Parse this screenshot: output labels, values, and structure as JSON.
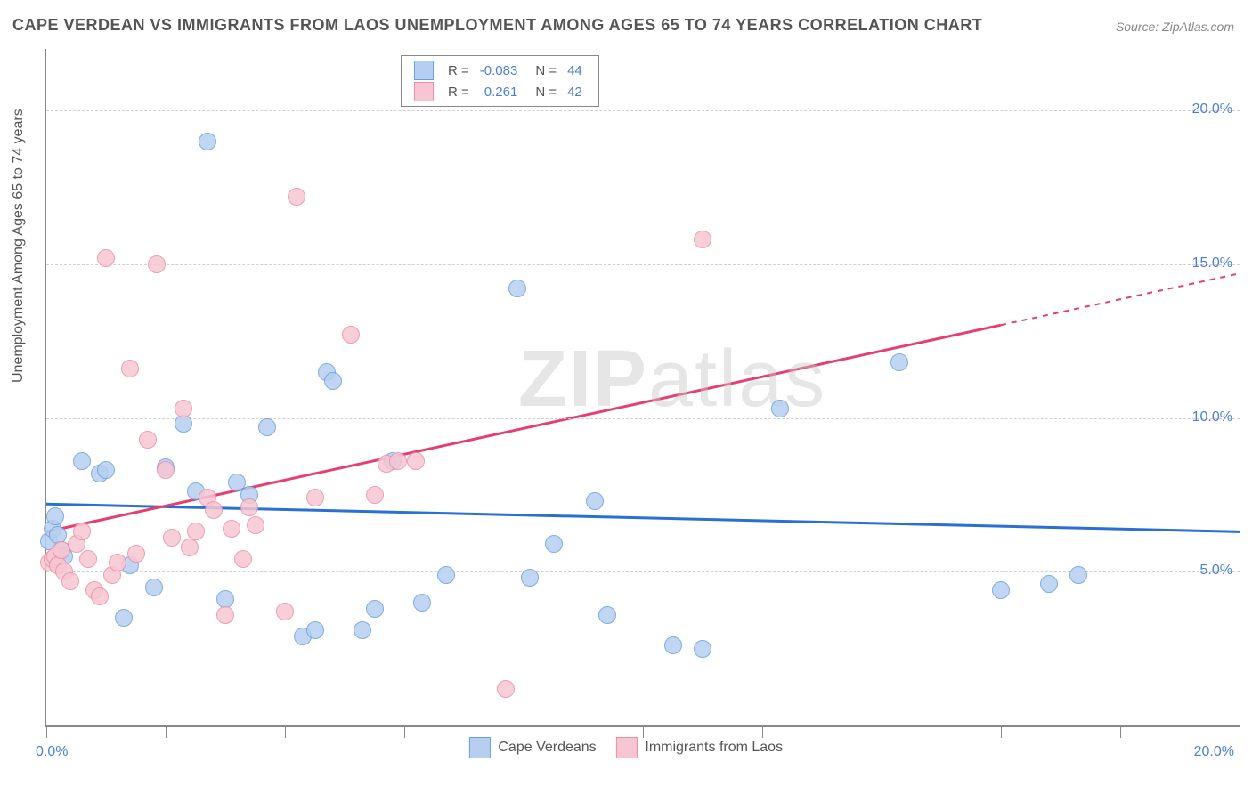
{
  "title": "CAPE VERDEAN VS IMMIGRANTS FROM LAOS UNEMPLOYMENT AMONG AGES 65 TO 74 YEARS CORRELATION CHART",
  "source": "Source: ZipAtlas.com",
  "ylabel": "Unemployment Among Ages 65 to 74 years",
  "watermark_bold": "ZIP",
  "watermark_thin": "atlas",
  "chart": {
    "type": "scatter",
    "xlim": [
      0,
      20
    ],
    "ylim": [
      0,
      22
    ],
    "x_axis_label_min": "0.0%",
    "x_axis_label_max": "20.0%",
    "y_ticks": [
      5,
      10,
      15,
      20
    ],
    "y_tick_labels": [
      "5.0%",
      "10.0%",
      "15.0%",
      "20.0%"
    ],
    "x_tick_positions": [
      0,
      2,
      4,
      6,
      8,
      10,
      12,
      14,
      16,
      18,
      20
    ],
    "grid_color": "#d0d0d0",
    "background_color": "#ffffff",
    "axis_color": "#888888"
  },
  "series": [
    {
      "name": "Cape Verdeans",
      "label": "Cape Verdeans",
      "marker_fill": "#b6cff0",
      "marker_stroke": "#6a9fde",
      "line_color": "#2a6fd6",
      "R": "-0.083",
      "N": "44",
      "trend": {
        "x1": 0,
        "y1": 7.2,
        "x2": 20,
        "y2": 6.3,
        "dash_after_x": 20
      },
      "points": [
        [
          0.05,
          6.0
        ],
        [
          0.1,
          6.4
        ],
        [
          0.15,
          6.8
        ],
        [
          0.2,
          6.2
        ],
        [
          0.25,
          5.7
        ],
        [
          0.3,
          5.5
        ],
        [
          0.6,
          8.6
        ],
        [
          0.9,
          8.2
        ],
        [
          1.0,
          8.3
        ],
        [
          1.3,
          3.5
        ],
        [
          1.4,
          5.2
        ],
        [
          1.8,
          4.5
        ],
        [
          2.0,
          8.4
        ],
        [
          2.3,
          9.8
        ],
        [
          2.5,
          7.6
        ],
        [
          2.7,
          19.0
        ],
        [
          3.0,
          4.1
        ],
        [
          3.2,
          7.9
        ],
        [
          3.4,
          7.5
        ],
        [
          3.7,
          9.7
        ],
        [
          4.3,
          2.9
        ],
        [
          4.5,
          3.1
        ],
        [
          4.7,
          11.5
        ],
        [
          4.8,
          11.2
        ],
        [
          5.3,
          3.1
        ],
        [
          5.5,
          3.8
        ],
        [
          5.8,
          8.6
        ],
        [
          6.3,
          4.0
        ],
        [
          6.7,
          4.9
        ],
        [
          7.9,
          14.2
        ],
        [
          8.1,
          4.8
        ],
        [
          8.5,
          5.9
        ],
        [
          9.2,
          7.3
        ],
        [
          9.4,
          3.6
        ],
        [
          10.5,
          2.6
        ],
        [
          11.0,
          2.5
        ],
        [
          12.3,
          10.3
        ],
        [
          14.3,
          11.8
        ],
        [
          16.0,
          4.4
        ],
        [
          16.8,
          4.6
        ],
        [
          17.3,
          4.9
        ]
      ]
    },
    {
      "name": "Immigrants from Laos",
      "label": "Immigrants from Laos",
      "marker_fill": "#f7c6d2",
      "marker_stroke": "#e98fa8",
      "line_color": "#e63e6d",
      "R": "0.261",
      "N": "42",
      "trend": {
        "x1": 0,
        "y1": 6.3,
        "x2": 20,
        "y2": 14.7,
        "dash_after_x": 16
      },
      "points": [
        [
          0.05,
          5.3
        ],
        [
          0.1,
          5.4
        ],
        [
          0.15,
          5.5
        ],
        [
          0.2,
          5.2
        ],
        [
          0.25,
          5.7
        ],
        [
          0.3,
          5.0
        ],
        [
          0.4,
          4.7
        ],
        [
          0.5,
          5.9
        ],
        [
          0.6,
          6.3
        ],
        [
          0.7,
          5.4
        ],
        [
          0.8,
          4.4
        ],
        [
          0.9,
          4.2
        ],
        [
          1.0,
          15.2
        ],
        [
          1.1,
          4.9
        ],
        [
          1.2,
          5.3
        ],
        [
          1.4,
          11.6
        ],
        [
          1.5,
          5.6
        ],
        [
          1.7,
          9.3
        ],
        [
          1.85,
          15.0
        ],
        [
          2.0,
          8.3
        ],
        [
          2.1,
          6.1
        ],
        [
          2.3,
          10.3
        ],
        [
          2.4,
          5.8
        ],
        [
          2.5,
          6.3
        ],
        [
          2.7,
          7.4
        ],
        [
          2.8,
          7.0
        ],
        [
          3.0,
          3.6
        ],
        [
          3.1,
          6.4
        ],
        [
          3.3,
          5.4
        ],
        [
          3.4,
          7.1
        ],
        [
          3.5,
          6.5
        ],
        [
          4.0,
          3.7
        ],
        [
          4.2,
          17.2
        ],
        [
          4.5,
          7.4
        ],
        [
          5.1,
          12.7
        ],
        [
          5.5,
          7.5
        ],
        [
          5.7,
          8.5
        ],
        [
          5.9,
          8.6
        ],
        [
          6.2,
          8.6
        ],
        [
          7.7,
          1.2
        ],
        [
          11.0,
          15.8
        ]
      ]
    }
  ],
  "legend_bottom": [
    {
      "label": "Cape Verdeans",
      "fill": "#b6cff0",
      "stroke": "#6a9fde"
    },
    {
      "label": "Immigrants from Laos",
      "fill": "#f7c6d2",
      "stroke": "#e98fa8"
    }
  ]
}
